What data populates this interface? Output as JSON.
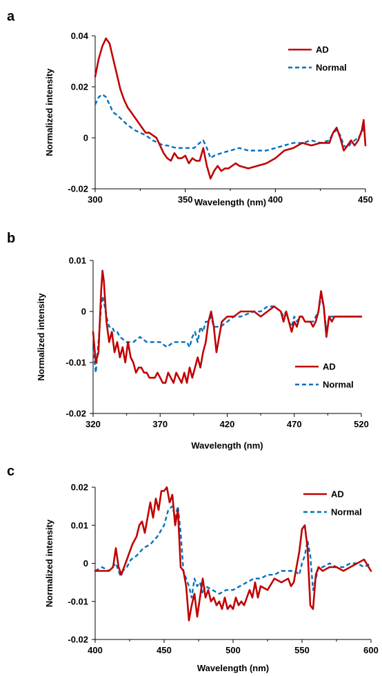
{
  "colors": {
    "AD": "#c00000",
    "Normal": "#0070c0",
    "axis": "#000000"
  },
  "chart_data": [
    {
      "type": "line",
      "panel_label": "a",
      "xlabel": "Wavelength (nm)",
      "ylabel": "Normalized intensity",
      "xlim": [
        300,
        450
      ],
      "ylim": [
        -0.02,
        0.04
      ],
      "xticks": [
        300,
        350,
        400,
        450
      ],
      "xtick_labels": [
        "300",
        "350",
        "400",
        "450"
      ],
      "yticks": [
        -0.02,
        0,
        0.02,
        0.04
      ],
      "ytick_labels": [
        "-0.02",
        "0",
        "0.02",
        "0.04"
      ],
      "legend": "top-right",
      "series": [
        {
          "name": "AD",
          "style": "solid",
          "color": "#c00000",
          "x": [
            300,
            302,
            304,
            306,
            308,
            310,
            312,
            314,
            316,
            318,
            320,
            322,
            324,
            326,
            328,
            330,
            332,
            334,
            336,
            338,
            340,
            342,
            344,
            346,
            348,
            350,
            352,
            354,
            356,
            358,
            360,
            362,
            364,
            366,
            368,
            370,
            372,
            374,
            376,
            378,
            380,
            385,
            390,
            395,
            400,
            405,
            410,
            415,
            420,
            425,
            430,
            432,
            434,
            436,
            438,
            440,
            442,
            444,
            446,
            448,
            449,
            450
          ],
          "y": [
            0.024,
            0.031,
            0.036,
            0.039,
            0.037,
            0.031,
            0.025,
            0.019,
            0.015,
            0.012,
            0.01,
            0.008,
            0.006,
            0.004,
            0.002,
            0.002,
            0.001,
            0.0,
            -0.003,
            -0.006,
            -0.008,
            -0.009,
            -0.006,
            -0.008,
            -0.008,
            -0.007,
            -0.01,
            -0.008,
            -0.009,
            -0.009,
            -0.004,
            -0.011,
            -0.016,
            -0.013,
            -0.011,
            -0.013,
            -0.012,
            -0.012,
            -0.011,
            -0.01,
            -0.011,
            -0.012,
            -0.011,
            -0.01,
            -0.008,
            -0.005,
            -0.004,
            -0.002,
            -0.003,
            -0.002,
            -0.002,
            0.002,
            0.004,
            0.0,
            -0.005,
            -0.003,
            -0.001,
            -0.003,
            -0.001,
            0.003,
            0.007,
            -0.003
          ]
        },
        {
          "name": "Normal",
          "style": "dashed",
          "color": "#0070c0",
          "x": [
            300,
            302,
            304,
            306,
            308,
            310,
            312,
            315,
            318,
            320,
            322,
            325,
            328,
            330,
            332,
            335,
            338,
            340,
            345,
            350,
            355,
            358,
            360,
            362,
            364,
            366,
            370,
            375,
            380,
            385,
            390,
            395,
            400,
            405,
            410,
            415,
            420,
            425,
            430,
            432,
            434,
            436,
            438,
            440,
            442,
            444,
            446,
            448,
            450
          ],
          "y": [
            0.013,
            0.016,
            0.017,
            0.016,
            0.013,
            0.01,
            0.009,
            0.007,
            0.005,
            0.004,
            0.003,
            0.002,
            0.001,
            0.0,
            -0.001,
            -0.002,
            -0.003,
            -0.003,
            -0.004,
            -0.004,
            -0.004,
            -0.002,
            -0.001,
            -0.004,
            -0.008,
            -0.007,
            -0.006,
            -0.005,
            -0.004,
            -0.005,
            -0.005,
            -0.005,
            -0.004,
            -0.003,
            -0.002,
            -0.002,
            -0.001,
            -0.002,
            -0.001,
            0.002,
            0.003,
            0.001,
            -0.003,
            -0.004,
            -0.002,
            -0.001,
            0.0,
            0.002,
            0.005
          ]
        }
      ]
    },
    {
      "type": "line",
      "panel_label": "b",
      "xlabel": "Wavelength (nm)",
      "ylabel": "Normalized intensity",
      "xlim": [
        320,
        520
      ],
      "ylim": [
        -0.02,
        0.01
      ],
      "xticks": [
        320,
        370,
        420,
        470,
        520
      ],
      "xtick_labels": [
        "320",
        "370",
        "420",
        "470",
        "520"
      ],
      "yticks": [
        -0.02,
        -0.01,
        0,
        0.01
      ],
      "ytick_labels": [
        "-0.02",
        "-0.01",
        "0",
        "0.01"
      ],
      "legend": "bottom-right",
      "series": [
        {
          "name": "AD",
          "style": "solid",
          "color": "#c00000",
          "x": [
            320,
            322,
            324,
            326,
            327,
            328,
            330,
            332,
            334,
            336,
            338,
            340,
            342,
            344,
            346,
            348,
            350,
            352,
            354,
            356,
            358,
            360,
            362,
            364,
            366,
            368,
            370,
            372,
            374,
            376,
            378,
            380,
            382,
            384,
            386,
            388,
            390,
            392,
            394,
            396,
            398,
            400,
            402,
            404,
            406,
            408,
            410,
            412,
            414,
            416,
            420,
            425,
            430,
            435,
            440,
            445,
            450,
            455,
            460,
            462,
            464,
            466,
            468,
            470,
            472,
            474,
            476,
            478,
            480,
            482,
            484,
            486,
            488,
            490,
            492,
            494,
            496,
            498,
            500,
            505,
            510,
            515,
            520
          ],
          "y": [
            -0.004,
            -0.01,
            -0.008,
            0.004,
            0.008,
            0.006,
            -0.002,
            -0.006,
            -0.004,
            -0.008,
            -0.006,
            -0.009,
            -0.007,
            -0.01,
            -0.006,
            -0.009,
            -0.01,
            -0.012,
            -0.011,
            -0.011,
            -0.012,
            -0.012,
            -0.013,
            -0.013,
            -0.013,
            -0.012,
            -0.013,
            -0.014,
            -0.014,
            -0.012,
            -0.013,
            -0.014,
            -0.012,
            -0.013,
            -0.014,
            -0.012,
            -0.014,
            -0.011,
            -0.013,
            -0.011,
            -0.009,
            -0.011,
            -0.008,
            -0.006,
            -0.002,
            0.0,
            -0.003,
            -0.008,
            -0.005,
            -0.002,
            -0.001,
            -0.001,
            0.0,
            0.0,
            0.0,
            -0.001,
            0.0,
            0.001,
            0.0,
            -0.002,
            0.0,
            -0.002,
            -0.004,
            -0.002,
            -0.003,
            -0.001,
            -0.001,
            -0.002,
            -0.002,
            -0.002,
            -0.003,
            -0.002,
            0.0,
            0.004,
            0.001,
            -0.005,
            -0.001,
            -0.002,
            -0.001,
            -0.001,
            -0.001,
            -0.001,
            -0.001
          ]
        },
        {
          "name": "Normal",
          "style": "dashed",
          "color": "#0070c0",
          "x": [
            320,
            322,
            324,
            326,
            327,
            328,
            330,
            332,
            334,
            336,
            338,
            340,
            345,
            350,
            355,
            360,
            365,
            370,
            375,
            380,
            385,
            390,
            392,
            394,
            396,
            398,
            400,
            402,
            404,
            406,
            408,
            410,
            415,
            420,
            425,
            430,
            440,
            445,
            450,
            455,
            460,
            462,
            464,
            466,
            468,
            470,
            472,
            474,
            476,
            478,
            480,
            482,
            484,
            486,
            488,
            490,
            492,
            494,
            496,
            498,
            500,
            505,
            510,
            515,
            520
          ],
          "y": [
            -0.007,
            -0.012,
            -0.006,
            0.001,
            0.003,
            0.002,
            -0.001,
            -0.003,
            -0.003,
            -0.004,
            -0.004,
            -0.005,
            -0.006,
            -0.006,
            -0.005,
            -0.006,
            -0.006,
            -0.006,
            -0.007,
            -0.006,
            -0.006,
            -0.006,
            -0.007,
            -0.005,
            -0.004,
            -0.006,
            -0.003,
            -0.004,
            -0.002,
            -0.002,
            -0.001,
            -0.003,
            -0.003,
            -0.002,
            -0.001,
            -0.001,
            0.0,
            0.0,
            0.001,
            0.001,
            0.0,
            -0.001,
            0.0,
            -0.002,
            -0.003,
            -0.001,
            -0.002,
            -0.001,
            -0.001,
            -0.002,
            -0.002,
            -0.002,
            -0.002,
            -0.001,
            0.0,
            0.003,
            0.001,
            -0.004,
            -0.001,
            -0.001,
            -0.001,
            -0.001,
            -0.001,
            -0.001,
            -0.001
          ]
        }
      ]
    },
    {
      "type": "line",
      "panel_label": "c",
      "xlabel": "Wavelength (nm)",
      "ylabel": "Normalized intensity",
      "xlim": [
        400,
        600
      ],
      "ylim": [
        -0.02,
        0.02
      ],
      "xticks": [
        400,
        450,
        500,
        550,
        600
      ],
      "xtick_labels": [
        "400",
        "450",
        "500",
        "550",
        "600"
      ],
      "yticks": [
        -0.02,
        -0.01,
        0,
        0.01,
        0.02
      ],
      "ytick_labels": [
        "-0.02",
        "-0.01",
        "0",
        "0.01",
        "0.02"
      ],
      "legend": "top-right",
      "series": [
        {
          "name": "AD",
          "style": "solid",
          "color": "#c00000",
          "x": [
            400,
            405,
            410,
            413,
            415,
            417,
            419,
            421,
            424,
            427,
            430,
            432,
            434,
            436,
            438,
            440,
            442,
            444,
            446,
            448,
            450,
            452,
            454,
            456,
            458,
            460,
            462,
            464,
            466,
            468,
            470,
            472,
            474,
            476,
            478,
            480,
            482,
            484,
            486,
            488,
            490,
            492,
            494,
            496,
            498,
            500,
            502,
            504,
            506,
            508,
            510,
            512,
            514,
            516,
            518,
            520,
            525,
            530,
            535,
            540,
            542,
            544,
            546,
            548,
            550,
            552,
            554,
            556,
            558,
            560,
            562,
            565,
            570,
            575,
            580,
            585,
            590,
            595,
            600
          ],
          "y": [
            -0.002,
            -0.002,
            -0.002,
            -0.001,
            0.004,
            -0.001,
            -0.003,
            -0.001,
            0.002,
            0.005,
            0.007,
            0.01,
            0.011,
            0.008,
            0.012,
            0.016,
            0.012,
            0.017,
            0.014,
            0.019,
            0.019,
            0.02,
            0.016,
            0.018,
            0.01,
            0.014,
            -0.001,
            -0.002,
            -0.006,
            -0.015,
            -0.011,
            -0.008,
            -0.014,
            -0.009,
            -0.004,
            -0.009,
            -0.007,
            -0.01,
            -0.009,
            -0.011,
            -0.01,
            -0.012,
            -0.009,
            -0.012,
            -0.011,
            -0.012,
            -0.009,
            -0.011,
            -0.01,
            -0.011,
            -0.009,
            -0.007,
            -0.009,
            -0.005,
            -0.009,
            -0.006,
            -0.007,
            -0.004,
            -0.005,
            -0.004,
            -0.006,
            -0.005,
            -0.001,
            0.003,
            0.009,
            0.01,
            0.004,
            -0.011,
            -0.012,
            -0.003,
            -0.001,
            -0.002,
            -0.001,
            -0.001,
            -0.002,
            -0.001,
            0.0,
            0.001,
            -0.002
          ]
        },
        {
          "name": "Normal",
          "style": "dashed",
          "color": "#0070c0",
          "x": [
            400,
            405,
            410,
            415,
            418,
            420,
            423,
            426,
            430,
            435,
            440,
            445,
            450,
            453,
            456,
            458,
            460,
            462,
            464,
            466,
            468,
            470,
            472,
            474,
            476,
            478,
            480,
            485,
            490,
            495,
            500,
            505,
            510,
            515,
            520,
            525,
            530,
            535,
            540,
            545,
            548,
            550,
            552,
            554,
            556,
            558,
            560,
            562,
            565,
            570,
            575,
            580,
            585,
            590,
            595,
            600
          ],
          "y": [
            -0.002,
            -0.001,
            -0.002,
            0.0,
            -0.003,
            -0.002,
            -0.001,
            0.001,
            0.002,
            0.004,
            0.005,
            0.007,
            0.01,
            0.014,
            0.015,
            0.012,
            0.015,
            0.008,
            -0.002,
            -0.004,
            -0.006,
            -0.009,
            -0.004,
            -0.006,
            -0.005,
            -0.008,
            -0.006,
            -0.007,
            -0.008,
            -0.007,
            -0.007,
            -0.006,
            -0.005,
            -0.004,
            -0.004,
            -0.003,
            -0.003,
            -0.002,
            -0.002,
            -0.002,
            -0.003,
            0.0,
            0.002,
            0.006,
            0.002,
            -0.007,
            -0.004,
            -0.001,
            -0.001,
            0.0,
            -0.001,
            -0.001,
            0.0,
            0.0,
            -0.001,
            0.0
          ]
        }
      ]
    }
  ]
}
